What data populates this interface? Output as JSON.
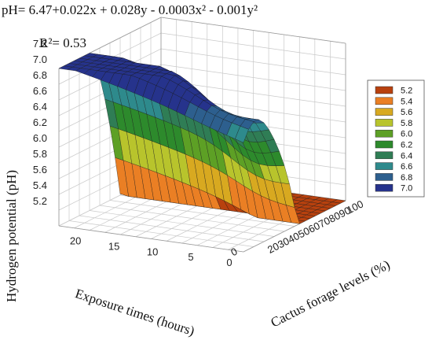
{
  "chart_data": {
    "type": "surface",
    "equation": "pH= 6.47+0.022x + 0.028y - 0.0003x² - 0.001y²",
    "r_squared": "R²= 0.53",
    "zlabel": "Hydrogen potential (pH)",
    "xlabel": "Exposure times (hours)",
    "ylabel": "Cactus forage levels (%)",
    "z_ticks": [
      "5.2",
      "5.4",
      "5.6",
      "5.8",
      "6.0",
      "6.2",
      "6.4",
      "6.6",
      "6.8",
      "7.0",
      "7.2"
    ],
    "x_ticks": [
      "0",
      "5",
      "10",
      "15",
      "20"
    ],
    "y_ticks": [
      "0",
      "20",
      "30",
      "40",
      "50",
      "60",
      "70",
      "80",
      "90",
      "100"
    ],
    "legend": [
      "5.2",
      "5.4",
      "5.6",
      "5.8",
      "6.0",
      "6.2",
      "6.4",
      "6.6",
      "6.8",
      "7.0"
    ],
    "colors": {
      "5.2": "#b8410e",
      "5.4": "#ea7f24",
      "5.6": "#d8a920",
      "5.8": "#b8c42c",
      "6.0": "#5da025",
      "6.2": "#2d8a2c",
      "6.4": "#2f7d55",
      "6.6": "#2e8a8c",
      "6.8": "#2d5f8e",
      "7.0": "#26338c"
    },
    "x_range": [
      0,
      24
    ],
    "y_range": [
      0,
      100
    ],
    "z_range": [
      5.2,
      7.2
    ],
    "grid": true,
    "legend_position": "right"
  }
}
